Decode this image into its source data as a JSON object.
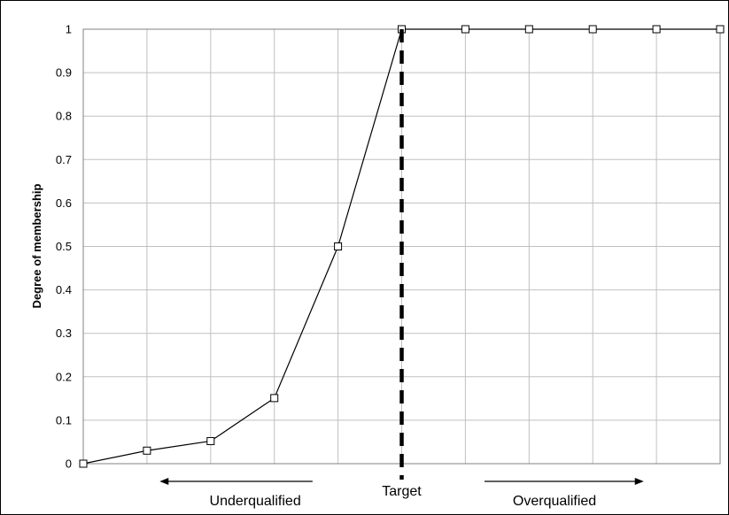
{
  "chart_data": {
    "type": "line",
    "title": "",
    "xlabel": "",
    "ylabel": "Degree of membership",
    "x": [
      0,
      1,
      2,
      3,
      4,
      5,
      6,
      7,
      8,
      9,
      10
    ],
    "xlim": [
      0,
      10
    ],
    "ylim": [
      0,
      1
    ],
    "y_ticks": [
      "0",
      "0.1",
      "0.2",
      "0.3",
      "0.4",
      "0.5",
      "0.6",
      "0.7",
      "0.8",
      "0.9",
      "1"
    ],
    "grid": true,
    "series": [
      {
        "values": [
          0,
          0.03,
          0.052,
          0.151,
          0.5,
          1,
          1,
          1,
          1,
          1,
          1
        ]
      }
    ],
    "annotations": {
      "target": {
        "label": "Target",
        "x": 5
      },
      "left": {
        "label": "Underqualified"
      },
      "right": {
        "label": "Overqualified"
      }
    },
    "colors": {
      "line": "#000000",
      "grid": "#c0c0c0",
      "marker_fill": "#ffffff"
    }
  }
}
